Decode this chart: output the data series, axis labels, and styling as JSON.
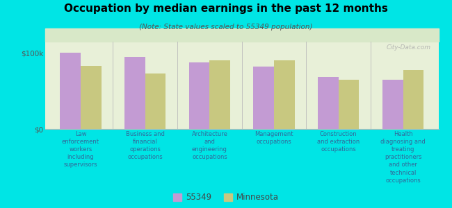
{
  "title": "Occupation by median earnings in the past 12 months",
  "subtitle": "(Note: State values scaled to 55349 population)",
  "categories": [
    "Law\nenforcement\nworkers\nincluding\nsupervisors",
    "Business and\nfinancial\noperations\noccupations",
    "Architecture\nand\nengineering\noccupations",
    "Management\noccupations",
    "Construction\nand extraction\noccupations",
    "Health\ndiagnosing and\ntreating\npractitioners\nand other\ntechnical\noccupations"
  ],
  "values_55349": [
    100000,
    95000,
    88000,
    82000,
    68000,
    65000
  ],
  "values_minnesota": [
    83000,
    73000,
    90000,
    90000,
    65000,
    78000
  ],
  "color_55349": "#c39bd3",
  "color_minnesota": "#c8c880",
  "background_outer": "#00e5e5",
  "background_plot_top": "#d8e8c8",
  "background_plot_bot": "#e8f0d8",
  "yticks": [
    0,
    100000
  ],
  "ytick_labels": [
    "$0",
    "$100k"
  ],
  "ylim": [
    0,
    115000
  ],
  "bar_width": 0.32,
  "legend_labels": [
    "55349",
    "Minnesota"
  ],
  "watermark": "City-Data.com"
}
